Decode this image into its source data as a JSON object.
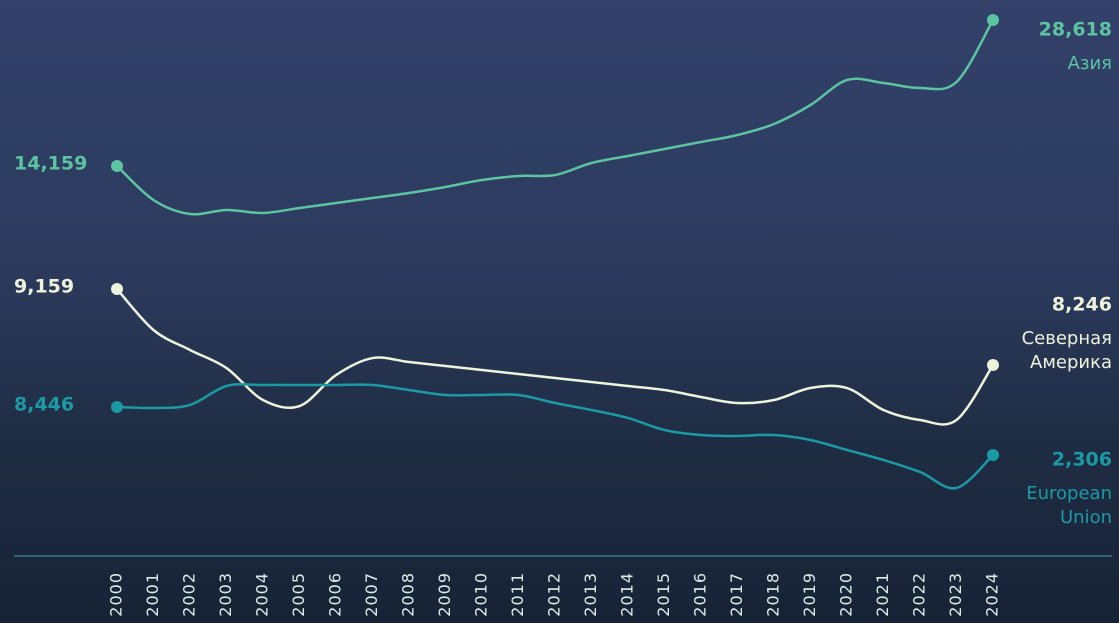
{
  "chart_data": {
    "type": "line",
    "x": [
      "2000",
      "2001",
      "2002",
      "2003",
      "2004",
      "2005",
      "2006",
      "2007",
      "2008",
      "2009",
      "2010",
      "2011",
      "2012",
      "2013",
      "2014",
      "2015",
      "2016",
      "2017",
      "2018",
      "2019",
      "2020",
      "2021",
      "2022",
      "2023",
      "2024"
    ],
    "series": [
      {
        "name": "Азия",
        "color": "#5cc4a0",
        "ylim": [
          -22900,
          30600
        ],
        "values": [
          14159,
          10786,
          9399,
          9795,
          9498,
          9994,
          10489,
          10985,
          11480,
          12075,
          12767,
          13164,
          13263,
          14452,
          15146,
          15839,
          16533,
          17226,
          18316,
          20198,
          22674,
          22377,
          21882,
          22476,
          28618
        ],
        "value_labels": [
          "14,159",
          null,
          null,
          null,
          null,
          null,
          null,
          null,
          null,
          null,
          null,
          null,
          null,
          null,
          null,
          null,
          null,
          null,
          null,
          null,
          null,
          null,
          null,
          null,
          "28,618"
        ]
      },
      {
        "name": "Северная Америка",
        "color": "#eef3dc",
        "ylim": [
          6145,
          12630
        ],
        "values": [
          9159,
          8667,
          8427,
          8210,
          7826,
          7754,
          8126,
          8330,
          8282,
          8234,
          8186,
          8138,
          8090,
          8042,
          7994,
          7946,
          7862,
          7790,
          7826,
          7970,
          7970,
          7706,
          7586,
          7586,
          8246
        ],
        "value_labels": [
          "9,159",
          null,
          null,
          null,
          null,
          null,
          null,
          null,
          null,
          null,
          null,
          null,
          null,
          null,
          null,
          null,
          null,
          null,
          null,
          null,
          null,
          null,
          null,
          null,
          "8,246"
        ]
      },
      {
        "name": "European Union",
        "color": "#1b9aa6",
        "ylim": [
          -8570,
          60500
        ],
        "values": [
          8446,
          8317,
          8700,
          11130,
          11258,
          11258,
          11258,
          11258,
          10619,
          9979,
          9979,
          9979,
          8956,
          8061,
          7038,
          5503,
          4864,
          4736,
          4864,
          4224,
          2945,
          1666,
          131,
          -1915,
          2306
        ],
        "value_labels": [
          "8,446",
          null,
          null,
          null,
          null,
          null,
          null,
          null,
          null,
          null,
          null,
          null,
          null,
          null,
          null,
          null,
          null,
          null,
          null,
          null,
          null,
          null,
          null,
          null,
          "2,306"
        ]
      }
    ]
  }
}
